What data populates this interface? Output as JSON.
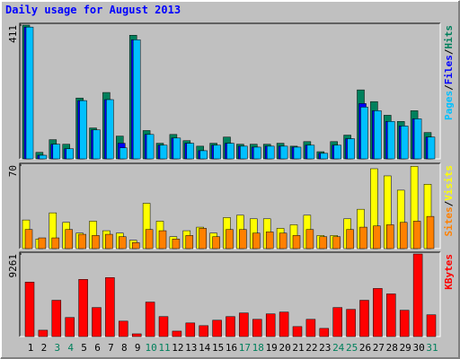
{
  "title": "Daily usage for August 2013",
  "legend_separator": "/",
  "chart_data": [
    {
      "type": "bar",
      "ylim": [
        0,
        411
      ],
      "yticks": [
        411
      ],
      "series": [
        {
          "name": "Hits",
          "color": "#00805c",
          "values": [
            411,
            20,
            59,
            45,
            187,
            95,
            204,
            70,
            380,
            87,
            48,
            75,
            56,
            39,
            48,
            67,
            45,
            45,
            45,
            48,
            39,
            53,
            22,
            53,
            73,
            212,
            176,
            134,
            115,
            148,
            81
          ]
        },
        {
          "name": "Files",
          "color": "#0000ff",
          "values": [
            405,
            11,
            45,
            31,
            179,
            89,
            182,
            48,
            366,
            75,
            42,
            64,
            48,
            25,
            42,
            48,
            39,
            36,
            39,
            39,
            36,
            42,
            17,
            42,
            62,
            170,
            148,
            115,
            101,
            123,
            67
          ]
        },
        {
          "name": "Pages",
          "color": "#00c0ff",
          "values": [
            405,
            11,
            45,
            31,
            179,
            89,
            182,
            34,
            366,
            75,
            42,
            64,
            48,
            25,
            42,
            48,
            39,
            36,
            39,
            39,
            36,
            42,
            17,
            42,
            62,
            159,
            148,
            115,
            101,
            123,
            67
          ]
        }
      ]
    },
    {
      "type": "bar",
      "ylim": [
        0,
        70
      ],
      "yticks": [
        70
      ],
      "series": [
        {
          "name": "Visits",
          "color": "#ffff00",
          "values": [
            24,
            8,
            30,
            22,
            13,
            23,
            15,
            13,
            7,
            38,
            23,
            10,
            15,
            18,
            13,
            26,
            28,
            25,
            25,
            17,
            20,
            28,
            11,
            11,
            25,
            33,
            67,
            61,
            49,
            69,
            54
          ]
        },
        {
          "name": "Sites",
          "color": "#ff8000",
          "values": [
            16,
            9,
            9,
            16,
            12,
            11,
            12,
            10,
            5,
            16,
            15,
            8,
            11,
            17,
            10,
            16,
            16,
            13,
            14,
            13,
            11,
            16,
            10,
            10,
            16,
            18,
            19,
            20,
            22,
            23,
            27
          ]
        }
      ]
    },
    {
      "type": "bar",
      "ylim": [
        0,
        9261
      ],
      "yticks": [
        9261
      ],
      "categories": [
        "1",
        "2",
        "3",
        "4",
        "5",
        "6",
        "7",
        "8",
        "9",
        "10",
        "11",
        "12",
        "13",
        "14",
        "15",
        "16",
        "17",
        "18",
        "19",
        "20",
        "21",
        "22",
        "23",
        "24",
        "25",
        "26",
        "27",
        "28",
        "29",
        "30",
        "31"
      ],
      "category_colors": [
        "#000",
        "#000",
        "#00805c",
        "#00805c",
        "#000",
        "#000",
        "#000",
        "#000",
        "#000",
        "#00805c",
        "#00805c",
        "#000",
        "#000",
        "#000",
        "#000",
        "#000",
        "#00805c",
        "#00805c",
        "#000",
        "#000",
        "#000",
        "#000",
        "#000",
        "#00805c",
        "#00805c",
        "#000",
        "#000",
        "#000",
        "#000",
        "#000",
        "#00805c"
      ],
      "series": [
        {
          "name": "KBytes",
          "color": "#ff0000",
          "values": [
            6108,
            713,
            4072,
            2138,
            6413,
            3257,
            6617,
            1730,
            305,
            3868,
            2240,
            611,
            1527,
            1222,
            1832,
            2240,
            2647,
            1934,
            2545,
            2749,
            1120,
            1934,
            916,
            3257,
            3054,
            4072,
            5395,
            4784,
            2952,
            9261,
            2443
          ]
        }
      ]
    }
  ]
}
